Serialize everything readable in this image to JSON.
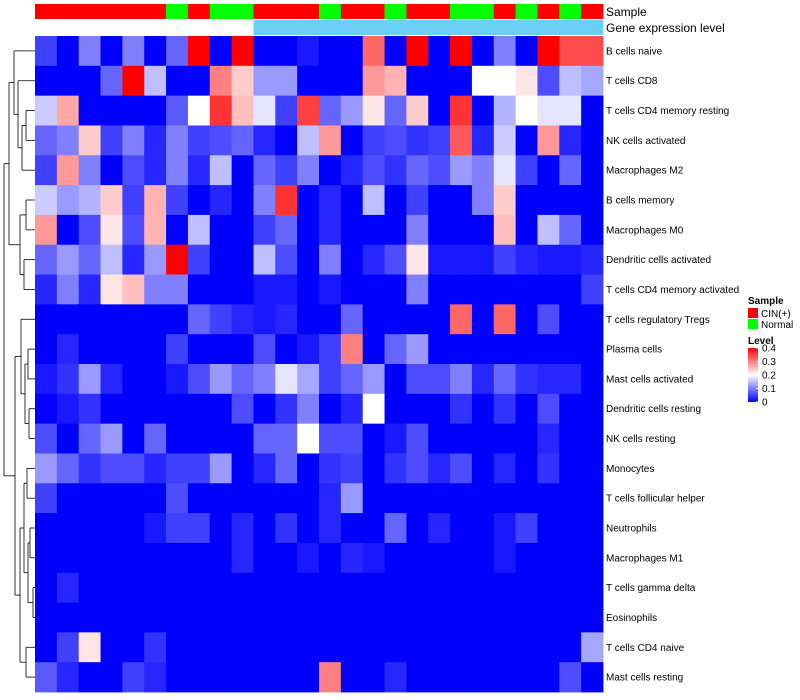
{
  "chart_data": {
    "type": "heatmap",
    "title": "",
    "rows": [
      "B cells naive",
      "T cells CD8",
      "T cells CD4 memory resting",
      "NK cells activated",
      "Macrophages M2",
      "B cells memory",
      "Macrophages M0",
      "Dendritic cells activated",
      "T cells CD4 memory activated",
      "T cells regulatory  Tregs",
      "Plasma cells",
      "Mast cells activated",
      "Dendritic cells resting",
      "NK cells resting",
      "Monocytes",
      "T cells follicular helper",
      "Neutrophils",
      "Macrophages M1",
      "T cells gamma delta",
      "Eosinophils",
      "T cells CD4 naive",
      "Mast cells resting"
    ],
    "annotations": [
      {
        "name": "Sample",
        "colors": {
          "CIN(+)": "#ff0000",
          "Normal": "#00ff00"
        },
        "values": [
          "CIN(+)",
          "CIN(+)",
          "CIN(+)",
          "CIN(+)",
          "CIN(+)",
          "CIN(+)",
          "Normal",
          "CIN(+)",
          "Normal",
          "Normal",
          "CIN(+)",
          "CIN(+)",
          "CIN(+)",
          "Normal",
          "CIN(+)",
          "CIN(+)",
          "Normal",
          "CIN(+)",
          "CIN(+)",
          "Normal",
          "Normal",
          "CIN(+)",
          "Normal",
          "CIN(+)",
          "Normal",
          "CIN(+)"
        ]
      },
      {
        "name": "Gene expression level",
        "colors": {
          "high": "#ffffff",
          "low": "#6ccff6"
        },
        "values": [
          "high",
          "high",
          "high",
          "high",
          "high",
          "high",
          "high",
          "high",
          "high",
          "high",
          "low",
          "low",
          "low",
          "low",
          "low",
          "low",
          "low",
          "low",
          "low",
          "low",
          "low",
          "low",
          "low",
          "low",
          "low",
          "low"
        ]
      }
    ],
    "values": [
      [
        0.05,
        0.0,
        0.1,
        0.0,
        0.1,
        0.0,
        0.08,
        0.4,
        0.0,
        0.4,
        0.0,
        0.0,
        0.02,
        0.0,
        0.0,
        0.32,
        0.0,
        0.4,
        0.0,
        0.4,
        0.0,
        0.1,
        0.0,
        0.4,
        0.34,
        0.34
      ],
      [
        0.0,
        0.0,
        0.0,
        0.08,
        0.4,
        0.15,
        0.0,
        0.0,
        0.3,
        0.24,
        0.12,
        0.12,
        0.0,
        0.0,
        0.0,
        0.28,
        0.26,
        0.0,
        0.0,
        0.0,
        0.2,
        0.2,
        0.22,
        0.06,
        0.15,
        0.13
      ],
      [
        0.16,
        0.27,
        0.0,
        0.0,
        0.0,
        0.0,
        0.07,
        0.2,
        0.36,
        0.25,
        0.18,
        0.05,
        0.35,
        0.08,
        0.12,
        0.22,
        0.08,
        0.24,
        0.0,
        0.36,
        0.0,
        0.14,
        0.2,
        0.18,
        0.18,
        0.0
      ],
      [
        0.08,
        0.1,
        0.24,
        0.05,
        0.1,
        0.03,
        0.1,
        0.05,
        0.06,
        0.08,
        0.03,
        0.0,
        0.15,
        0.28,
        0.0,
        0.05,
        0.06,
        0.04,
        0.05,
        0.33,
        0.03,
        0.16,
        0.0,
        0.28,
        0.03,
        0.0
      ],
      [
        0.05,
        0.28,
        0.1,
        0.0,
        0.06,
        0.03,
        0.1,
        0.03,
        0.15,
        0.0,
        0.08,
        0.05,
        0.1,
        0.0,
        0.03,
        0.06,
        0.04,
        0.08,
        0.06,
        0.12,
        0.1,
        0.18,
        0.05,
        0.0,
        0.08,
        0.0
      ],
      [
        0.16,
        0.12,
        0.14,
        0.24,
        0.05,
        0.26,
        0.05,
        0.0,
        0.03,
        0.0,
        0.1,
        0.36,
        0.0,
        0.03,
        0.0,
        0.15,
        0.0,
        0.05,
        0.0,
        0.0,
        0.1,
        0.24,
        0.0,
        0.0,
        0.0,
        0.0
      ],
      [
        0.28,
        0.0,
        0.06,
        0.22,
        0.06,
        0.26,
        0.0,
        0.15,
        0.0,
        0.0,
        0.05,
        0.08,
        0.0,
        0.03,
        0.0,
        0.0,
        0.0,
        0.1,
        0.0,
        0.0,
        0.0,
        0.25,
        0.0,
        0.15,
        0.08,
        0.0
      ],
      [
        0.08,
        0.12,
        0.08,
        0.15,
        0.03,
        0.12,
        0.4,
        0.05,
        0.0,
        0.0,
        0.15,
        0.06,
        0.0,
        0.1,
        0.0,
        0.03,
        0.06,
        0.22,
        0.02,
        0.02,
        0.02,
        0.05,
        0.03,
        0.02,
        0.02,
        0.03
      ],
      [
        0.03,
        0.1,
        0.03,
        0.22,
        0.25,
        0.1,
        0.1,
        0.0,
        0.0,
        0.0,
        0.02,
        0.02,
        0.0,
        0.02,
        0.0,
        0.0,
        0.0,
        0.1,
        0.0,
        0.0,
        0.0,
        0.0,
        0.0,
        0.0,
        0.0,
        0.05
      ],
      [
        0.0,
        0.0,
        0.0,
        0.0,
        0.0,
        0.0,
        0.0,
        0.08,
        0.05,
        0.03,
        0.02,
        0.03,
        0.0,
        0.0,
        0.08,
        0.0,
        0.0,
        0.0,
        0.0,
        0.32,
        0.0,
        0.32,
        0.0,
        0.06,
        0.0,
        0.0
      ],
      [
        0.0,
        0.03,
        0.0,
        0.0,
        0.0,
        0.0,
        0.05,
        0.0,
        0.0,
        0.0,
        0.06,
        0.0,
        0.02,
        0.05,
        0.3,
        0.0,
        0.08,
        0.12,
        0.0,
        0.0,
        0.0,
        0.0,
        0.0,
        0.0,
        0.0,
        0.0
      ],
      [
        0.02,
        0.04,
        0.12,
        0.03,
        0.0,
        0.0,
        0.02,
        0.06,
        0.12,
        0.08,
        0.1,
        0.18,
        0.13,
        0.05,
        0.08,
        0.12,
        0.0,
        0.06,
        0.06,
        0.1,
        0.03,
        0.08,
        0.04,
        0.03,
        0.03,
        0.0
      ],
      [
        0.0,
        0.02,
        0.04,
        0.0,
        0.0,
        0.0,
        0.0,
        0.0,
        0.0,
        0.06,
        0.0,
        0.04,
        0.1,
        0.0,
        0.03,
        0.2,
        0.0,
        0.0,
        0.0,
        0.04,
        0.0,
        0.04,
        0.0,
        0.06,
        0.0,
        0.0
      ],
      [
        0.06,
        0.0,
        0.08,
        0.12,
        0.0,
        0.08,
        0.0,
        0.0,
        0.0,
        0.0,
        0.08,
        0.08,
        0.2,
        0.06,
        0.06,
        0.0,
        0.02,
        0.06,
        0.0,
        0.0,
        0.0,
        0.0,
        0.0,
        0.03,
        0.0,
        0.0
      ],
      [
        0.12,
        0.08,
        0.04,
        0.06,
        0.06,
        0.03,
        0.05,
        0.05,
        0.12,
        0.0,
        0.03,
        0.08,
        0.0,
        0.04,
        0.05,
        0.0,
        0.04,
        0.06,
        0.03,
        0.06,
        0.0,
        0.03,
        0.0,
        0.04,
        0.0,
        0.0
      ],
      [
        0.05,
        0.0,
        0.0,
        0.0,
        0.0,
        0.0,
        0.06,
        0.0,
        0.0,
        0.0,
        0.0,
        0.0,
        0.0,
        0.03,
        0.12,
        0.0,
        0.0,
        0.0,
        0.0,
        0.0,
        0.0,
        0.0,
        0.0,
        0.0,
        0.0,
        0.0
      ],
      [
        0.0,
        0.0,
        0.0,
        0.0,
        0.0,
        0.02,
        0.05,
        0.05,
        0.0,
        0.03,
        0.0,
        0.04,
        0.0,
        0.03,
        0.0,
        0.0,
        0.08,
        0.0,
        0.03,
        0.0,
        0.0,
        0.02,
        0.05,
        0.0,
        0.0,
        0.0
      ],
      [
        0.0,
        0.0,
        0.0,
        0.0,
        0.0,
        0.0,
        0.0,
        0.0,
        0.0,
        0.03,
        0.0,
        0.0,
        0.02,
        0.0,
        0.03,
        0.02,
        0.0,
        0.0,
        0.0,
        0.0,
        0.0,
        0.02,
        0.0,
        0.0,
        0.0,
        0.0
      ],
      [
        0.0,
        0.03,
        0.0,
        0.0,
        0.0,
        0.0,
        0.0,
        0.0,
        0.0,
        0.0,
        0.0,
        0.0,
        0.0,
        0.0,
        0.0,
        0.0,
        0.0,
        0.0,
        0.0,
        0.0,
        0.0,
        0.0,
        0.0,
        0.0,
        0.0,
        0.0
      ],
      [
        0.0,
        0.0,
        0.0,
        0.0,
        0.0,
        0.0,
        0.0,
        0.0,
        0.0,
        0.0,
        0.0,
        0.0,
        0.0,
        0.0,
        0.0,
        0.0,
        0.0,
        0.0,
        0.0,
        0.0,
        0.0,
        0.0,
        0.0,
        0.0,
        0.0,
        0.0
      ],
      [
        0.0,
        0.05,
        0.22,
        0.0,
        0.0,
        0.04,
        0.0,
        0.0,
        0.0,
        0.0,
        0.0,
        0.0,
        0.0,
        0.0,
        0.0,
        0.0,
        0.0,
        0.0,
        0.0,
        0.0,
        0.0,
        0.0,
        0.0,
        0.0,
        0.0,
        0.13
      ],
      [
        0.07,
        0.03,
        0.0,
        0.0,
        0.05,
        0.03,
        0.0,
        0.0,
        0.0,
        0.0,
        0.0,
        0.0,
        0.0,
        0.3,
        0.0,
        0.0,
        0.03,
        0.0,
        0.0,
        0.0,
        0.0,
        0.0,
        0.0,
        0.0,
        0.06,
        0.0
      ]
    ],
    "color_scale": {
      "min": 0,
      "mid": 0.2,
      "max": 0.4,
      "low": "#0000ff",
      "mid_color": "#ffffff",
      "high": "#ff0000"
    },
    "legend": {
      "sample_title": "Sample",
      "sample_entries": [
        {
          "label": "CIN(+)",
          "color": "#ff0000"
        },
        {
          "label": "Normal",
          "color": "#00ff00"
        }
      ],
      "level_title": "Level",
      "level_ticks": [
        "0.4",
        "0.3",
        "0.2",
        "0.1",
        "0"
      ],
      "level_tick_values": [
        0.4,
        0.3,
        0.2,
        0.1,
        0
      ],
      "placement": "right"
    }
  }
}
